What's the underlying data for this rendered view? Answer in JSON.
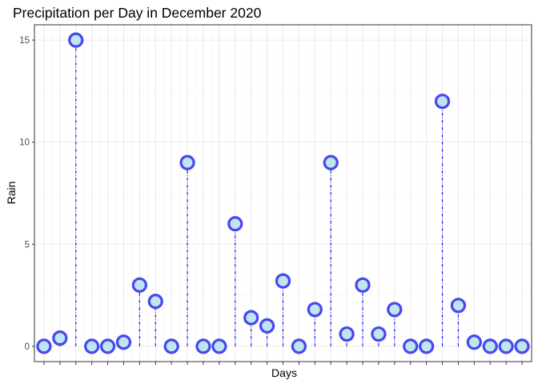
{
  "chart_data": {
    "type": "lollipop",
    "title": "Precipitation per Day in December 2020",
    "xlabel": "Days",
    "ylabel": "Rain",
    "x": [
      1,
      2,
      3,
      4,
      5,
      6,
      7,
      8,
      9,
      10,
      11,
      12,
      13,
      14,
      15,
      16,
      17,
      18,
      19,
      20,
      21,
      22,
      23,
      24,
      25,
      26,
      27,
      28,
      29,
      30,
      31
    ],
    "values": [
      0,
      0.4,
      15,
      0,
      0,
      0.2,
      3,
      2.2,
      0,
      9,
      0,
      0,
      6,
      1.4,
      1,
      3.2,
      0,
      1.8,
      9,
      0.6,
      3,
      0.6,
      1.8,
      0,
      0,
      12,
      2,
      0.2,
      0,
      0,
      0
    ],
    "ylim": [
      -0.75,
      15.75
    ],
    "xlim": [
      0.4,
      31.6
    ],
    "y_ticks": [
      0,
      5,
      10,
      15
    ],
    "y_tick_labels": [
      "0",
      "5",
      "10",
      "15"
    ],
    "x_tick_labels_shown": false,
    "grid": true,
    "legend": "none",
    "colors": {
      "point_fill": "#bfe6f0",
      "point_stroke": "#4747f0",
      "stem": "#1111ee",
      "panel_border": "#333333",
      "grid_major": "#ebebeb",
      "grid_minor": "#f5f5f5"
    }
  }
}
